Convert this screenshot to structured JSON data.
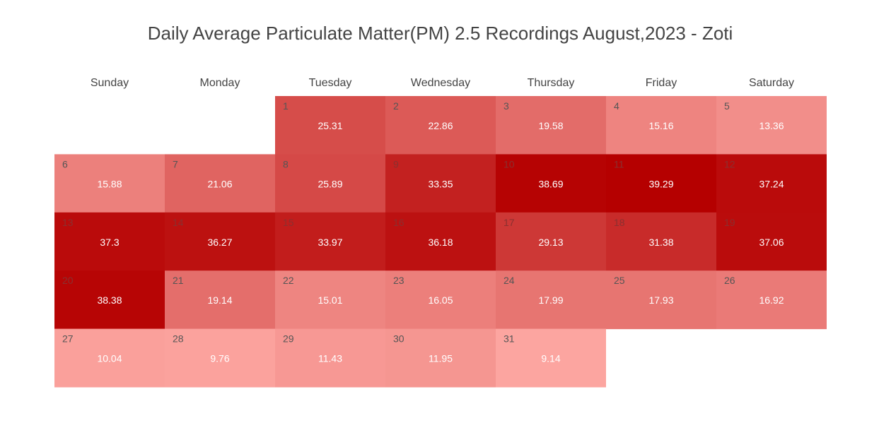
{
  "chart_data": {
    "type": "heatmap",
    "title": "Daily Average Particulate Matter(PM) 2.5 Recordings August,2023 - Zoti",
    "weekdays": [
      "Sunday",
      "Monday",
      "Tuesday",
      "Wednesday",
      "Thursday",
      "Friday",
      "Saturday"
    ],
    "first_weekday_index": 2,
    "days": [
      {
        "day": 1,
        "value": 25.31
      },
      {
        "day": 2,
        "value": 22.86
      },
      {
        "day": 3,
        "value": 19.58
      },
      {
        "day": 4,
        "value": 15.16
      },
      {
        "day": 5,
        "value": 13.36
      },
      {
        "day": 6,
        "value": 15.88
      },
      {
        "day": 7,
        "value": 21.06
      },
      {
        "day": 8,
        "value": 25.89
      },
      {
        "day": 9,
        "value": 33.35
      },
      {
        "day": 10,
        "value": 38.69
      },
      {
        "day": 11,
        "value": 39.29
      },
      {
        "day": 12,
        "value": 37.24
      },
      {
        "day": 13,
        "value": 37.3
      },
      {
        "day": 14,
        "value": 36.27
      },
      {
        "day": 15,
        "value": 33.97
      },
      {
        "day": 16,
        "value": 36.18
      },
      {
        "day": 17,
        "value": 29.13
      },
      {
        "day": 18,
        "value": 31.38
      },
      {
        "day": 19,
        "value": 37.06
      },
      {
        "day": 20,
        "value": 38.38
      },
      {
        "day": 21,
        "value": 19.14
      },
      {
        "day": 22,
        "value": 15.01
      },
      {
        "day": 23,
        "value": 16.05
      },
      {
        "day": 24,
        "value": 17.99
      },
      {
        "day": 25,
        "value": 17.93
      },
      {
        "day": 26,
        "value": 16.92
      },
      {
        "day": 27,
        "value": 10.04
      },
      {
        "day": 28,
        "value": 9.76
      },
      {
        "day": 29,
        "value": 11.43
      },
      {
        "day": 30,
        "value": 11.95
      },
      {
        "day": 31,
        "value": 9.14
      }
    ],
    "value_range": [
      9.14,
      39.29
    ],
    "colors": {
      "low": "#fca5a0",
      "high": "#b50000",
      "title": "#444444",
      "label": "#444444",
      "value_text": "#ffffff"
    }
  }
}
